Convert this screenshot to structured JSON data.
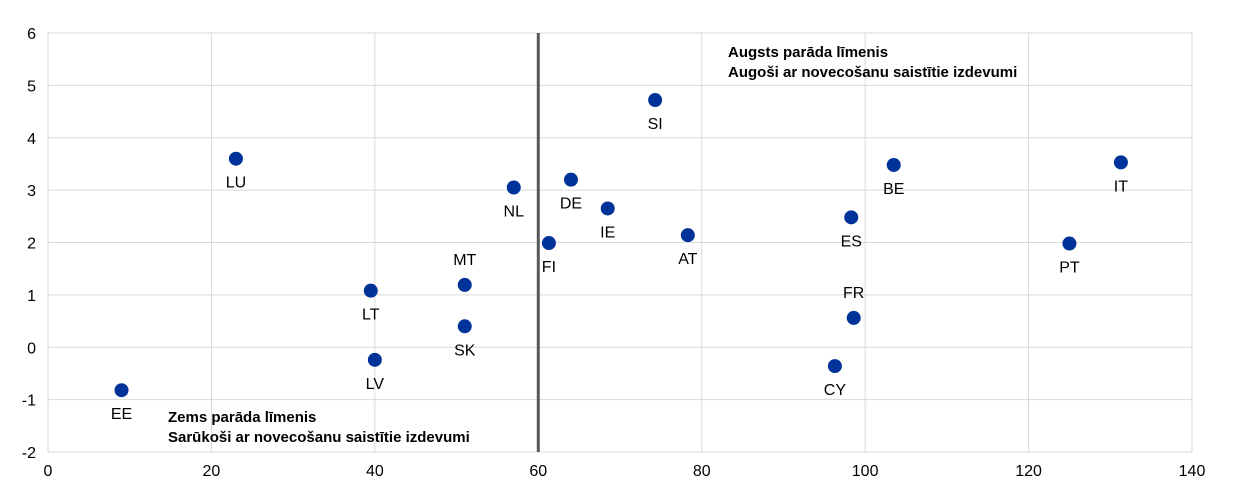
{
  "chart_data": {
    "type": "scatter",
    "title": "",
    "xlabel": "",
    "ylabel": "",
    "xlim": [
      0,
      140
    ],
    "ylim": [
      -2,
      6
    ],
    "x_ticks": [
      0,
      20,
      40,
      60,
      80,
      100,
      120,
      140
    ],
    "y_ticks": [
      -2,
      -1,
      0,
      1,
      2,
      3,
      4,
      5,
      6
    ],
    "grid": true,
    "marker_color": "#003399",
    "divider_color": "#595959",
    "divider_x": 60,
    "points": [
      {
        "label": "EE",
        "x": 9,
        "y": -0.82,
        "pos": "below"
      },
      {
        "label": "LU",
        "x": 23,
        "y": 3.6,
        "pos": "below"
      },
      {
        "label": "LT",
        "x": 39.5,
        "y": 1.08,
        "pos": "below"
      },
      {
        "label": "LV",
        "x": 40,
        "y": -0.24,
        "pos": "below"
      },
      {
        "label": "MT",
        "x": 51,
        "y": 1.19,
        "pos": "above"
      },
      {
        "label": "SK",
        "x": 51,
        "y": 0.4,
        "pos": "below"
      },
      {
        "label": "NL",
        "x": 57,
        "y": 3.05,
        "pos": "below"
      },
      {
        "label": "FI",
        "x": 61.3,
        "y": 1.99,
        "pos": "below"
      },
      {
        "label": "DE",
        "x": 64,
        "y": 3.2,
        "pos": "below"
      },
      {
        "label": "IE",
        "x": 68.5,
        "y": 2.65,
        "pos": "below"
      },
      {
        "label": "SI",
        "x": 74.3,
        "y": 4.72,
        "pos": "below"
      },
      {
        "label": "AT",
        "x": 78.3,
        "y": 2.14,
        "pos": "below"
      },
      {
        "label": "CY",
        "x": 96.3,
        "y": -0.36,
        "pos": "below"
      },
      {
        "label": "ES",
        "x": 98.3,
        "y": 2.48,
        "pos": "below"
      },
      {
        "label": "FR",
        "x": 98.6,
        "y": 0.56,
        "pos": "above"
      },
      {
        "label": "BE",
        "x": 103.5,
        "y": 3.48,
        "pos": "below"
      },
      {
        "label": "PT",
        "x": 125,
        "y": 1.98,
        "pos": "below"
      },
      {
        "label": "IT",
        "x": 131.3,
        "y": 3.53,
        "pos": "below"
      }
    ],
    "annotations": {
      "upper_right_line1": "Augsts parāda līmenis",
      "upper_right_line2": "Augoši ar novecošanu saistītie izdevumi",
      "lower_left_line1": "Zems parāda līmenis",
      "lower_left_line2": "Sarūkoši ar novecošanu saistītie izdevumi"
    }
  }
}
